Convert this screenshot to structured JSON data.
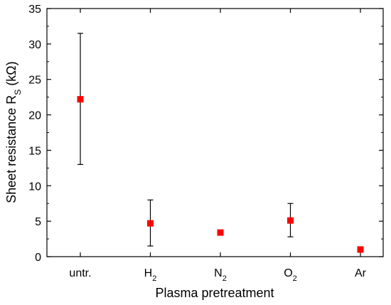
{
  "chart_data": {
    "type": "scatter",
    "title": "",
    "xlabel": "Plasma pretreatment",
    "ylabel": {
      "prefix": "Sheet resistance R",
      "subscript": "S",
      "suffix": " (kΩ)"
    },
    "ylim": [
      0,
      35
    ],
    "yticks": [
      0,
      5,
      10,
      15,
      20,
      25,
      30,
      35
    ],
    "categories": [
      {
        "text": "untr.",
        "sub": ""
      },
      {
        "text": "H",
        "sub": "2"
      },
      {
        "text": "N",
        "sub": "2"
      },
      {
        "text": "O",
        "sub": "2"
      },
      {
        "text": "Ar",
        "sub": ""
      }
    ],
    "series": [
      {
        "values": [
          22.2,
          4.7,
          3.4,
          5.1,
          1.0
        ],
        "err_low": [
          13.0,
          1.5,
          3.1,
          2.8,
          0.7
        ],
        "err_high": [
          31.5,
          8.0,
          3.7,
          7.5,
          1.4
        ],
        "marker": "square",
        "color": "#ff0000"
      }
    ],
    "error_bar_color": "#000000",
    "grid": false,
    "legend": "none"
  }
}
